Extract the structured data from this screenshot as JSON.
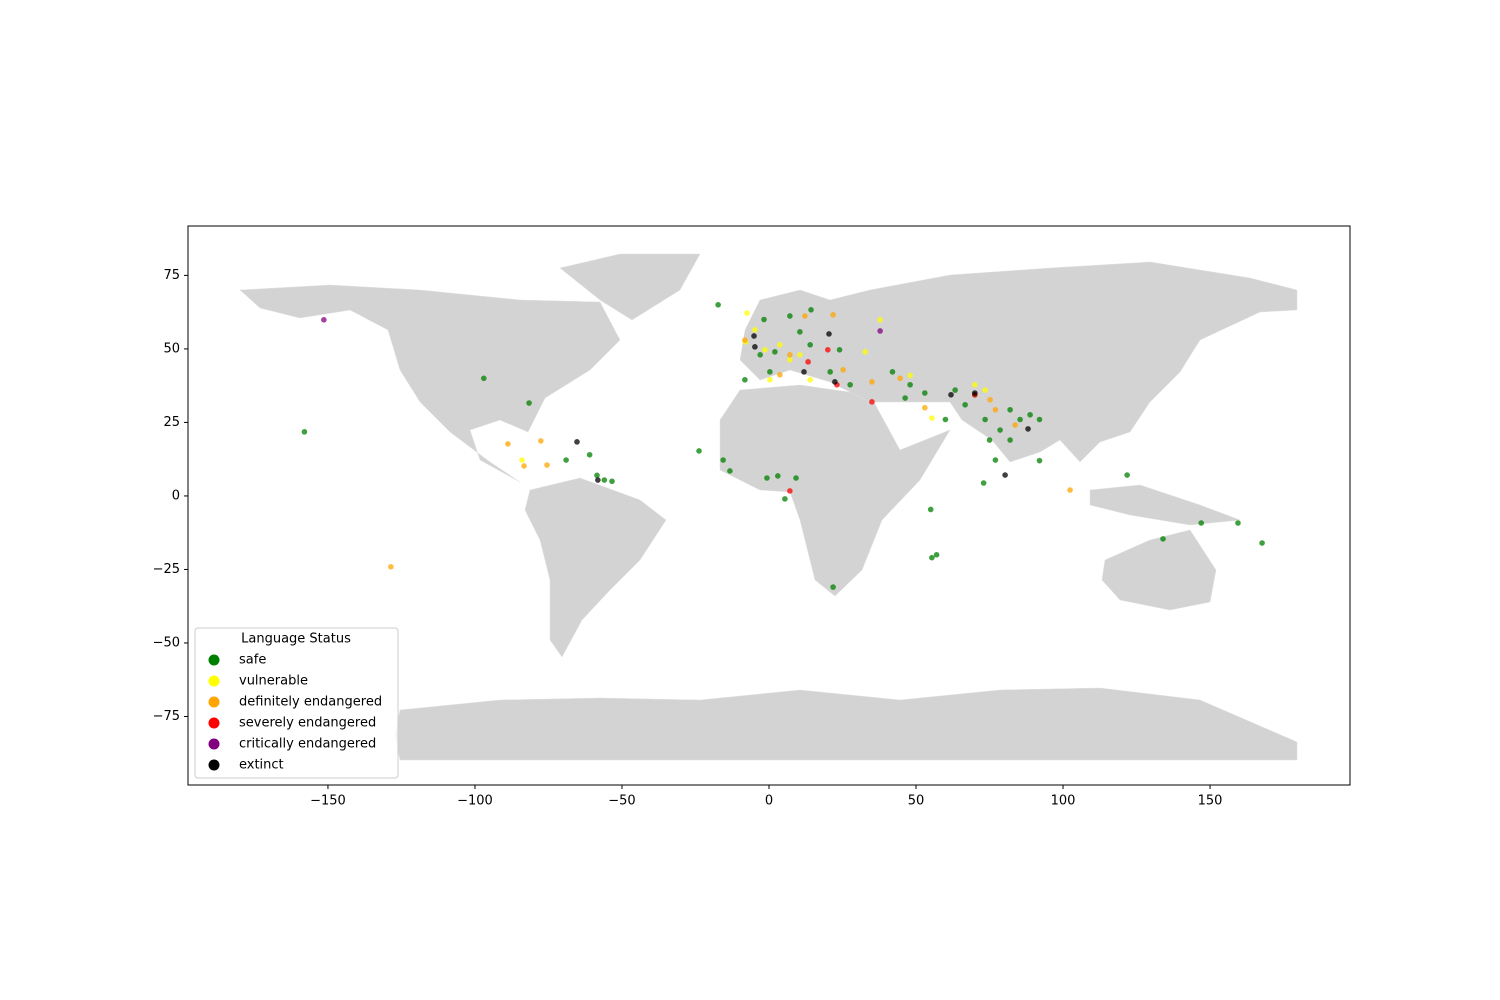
{
  "chart_data": {
    "type": "scatter",
    "xlim": [
      -197.6,
      197.6
    ],
    "ylim": [
      -98.3,
      91.8
    ],
    "xticks": [
      {
        "value": -150,
        "label": "−150"
      },
      {
        "value": -100,
        "label": "−100"
      },
      {
        "value": -50,
        "label": "−50"
      },
      0,
      50,
      100,
      150
    ],
    "yticks": [
      {
        "value": -75,
        "label": "−75"
      },
      {
        "value": -50,
        "label": "−50"
      },
      {
        "value": -25,
        "label": "−25"
      },
      0,
      25,
      50,
      75
    ],
    "legend_title": "Language Status",
    "legend_position": "lower left",
    "series": [
      {
        "name": "safe",
        "color": "green",
        "x": [
          -17.3,
          -97,
          -81.6,
          -69,
          -61,
          -58.5,
          -56,
          -53.4,
          -23.8,
          -15.6,
          -13.3,
          -0.7,
          3,
          9.2,
          5.4,
          21.8,
          55,
          55.4,
          57,
          73,
          92,
          121.8,
          134,
          147,
          159.5,
          167.7,
          -158,
          -1.7,
          7.1,
          14.3,
          10.5,
          -3,
          2,
          14,
          24,
          20.8,
          0.3,
          -8.2,
          27.6,
          42,
          48,
          46.3,
          53,
          60,
          66.7,
          73.5,
          78.6,
          82,
          85.4,
          75,
          77,
          92,
          88.8,
          70,
          63.3,
          82
        ],
        "y": [
          65,
          40,
          31.6,
          12.2,
          14,
          7,
          5.4,
          5,
          15.3,
          12.2,
          8.5,
          6.1,
          6.8,
          6.1,
          -1,
          -31,
          -4.6,
          -21,
          -20,
          4.4,
          12,
          7.1,
          -14.6,
          -9.2,
          -9.2,
          -16,
          21.8,
          60,
          61.2,
          63.3,
          55.8,
          48,
          49,
          51.4,
          49.7,
          42.2,
          42.2,
          39.5,
          37.8,
          42.2,
          37.8,
          33.3,
          35,
          26,
          31,
          26,
          22.4,
          29.3,
          26,
          19,
          12.2,
          26,
          27.6,
          34.4,
          36,
          19
        ]
      },
      {
        "name": "vulnerable",
        "color": "yellow",
        "x": [
          -7.5,
          -8,
          -4.8,
          3.7,
          7.1,
          10.5,
          0.3,
          37.8,
          32.7,
          48,
          70,
          73.5,
          14,
          -84,
          55.4,
          -1.4
        ],
        "y": [
          62.2,
          52.4,
          56.5,
          51.4,
          46.3,
          48,
          39.5,
          59.9,
          49,
          41,
          37.8,
          36,
          39.5,
          12.2,
          26.5,
          49.7
        ]
      },
      {
        "name": "definitely endangered",
        "color": "orange",
        "x": [
          -128.6,
          -88.8,
          -83.3,
          -77.6,
          -75.5,
          -8.2,
          21.8,
          12.2,
          7.1,
          25.2,
          35,
          44.6,
          53,
          102.4,
          75.2,
          83.7,
          77,
          3.7
        ],
        "y": [
          -24.1,
          17.7,
          10.2,
          18.7,
          10.5,
          53,
          61.6,
          61.2,
          48,
          42.9,
          38.8,
          40,
          30,
          2,
          32.7,
          24.1,
          29.3,
          41.2
        ]
      },
      {
        "name": "severely endangered",
        "color": "red",
        "x": [
          7.1,
          13.3,
          20,
          23.1,
          35,
          70
        ],
        "y": [
          1.7,
          45.6,
          49.7,
          37.8,
          32,
          34.4
        ]
      },
      {
        "name": "critically endangered",
        "color": "purple",
        "x": [
          -151.4,
          37.8
        ],
        "y": [
          59.9,
          56.1
        ]
      },
      {
        "name": "extinct",
        "color": "black",
        "x": [
          -65.3,
          -58.2,
          -4.8,
          -5.1,
          11.9,
          20.4,
          61.9,
          80.3,
          88.1,
          22.4,
          70
        ],
        "y": [
          18.4,
          5.4,
          50.7,
          54.4,
          42.2,
          55.1,
          34.4,
          7.1,
          22.8,
          38.8,
          35
        ]
      }
    ]
  }
}
